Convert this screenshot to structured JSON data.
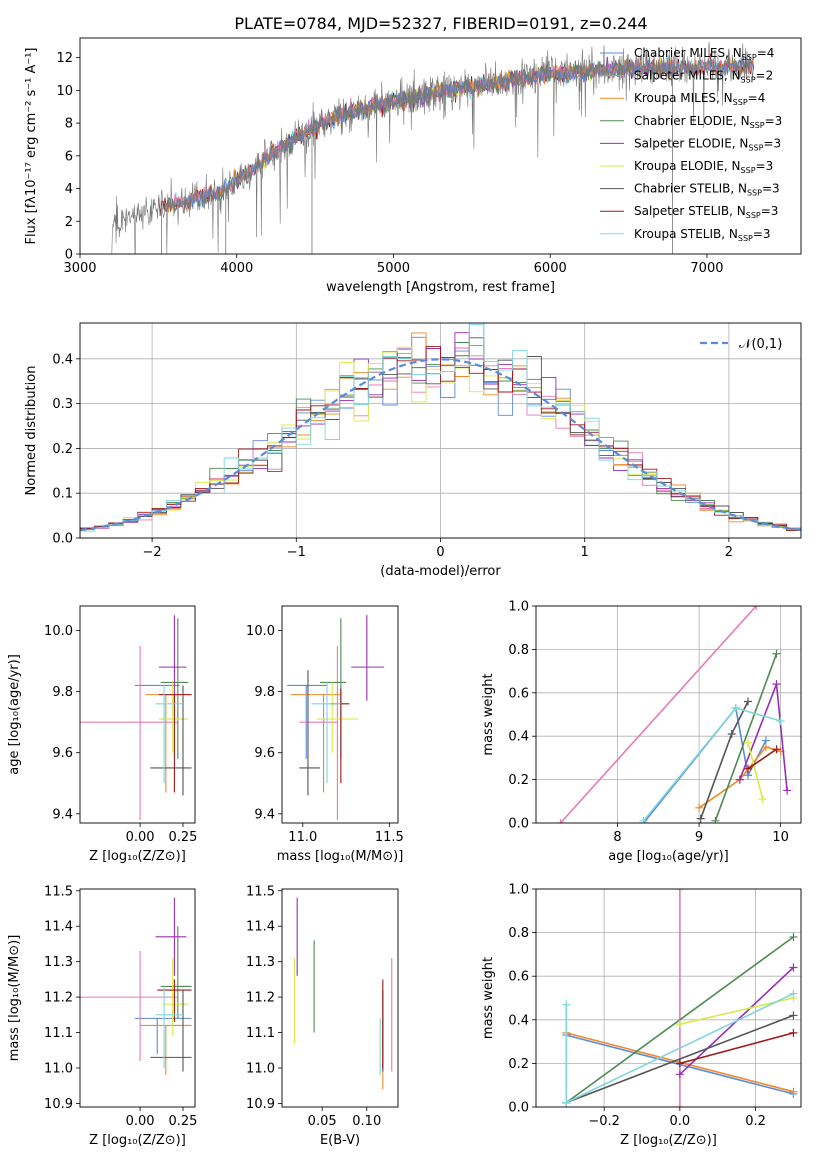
{
  "title": "PLATE=0784, MJD=52327, FIBERID=0191, z=0.244",
  "colors": {
    "chabrier_miles": "#5b8ad8",
    "salpeter_miles": "#e87ab5",
    "kroupa_miles": "#f0892a",
    "chabrier_elodie": "#4e8a52",
    "salpeter_elodie": "#9a2db5",
    "kroupa_elodie": "#d8ea48",
    "chabrier_stelib": "#555555",
    "salpeter_stelib": "#a01818",
    "kroupa_stelib": "#7fd6dc"
  },
  "legend_spectrum": [
    {
      "label": "Chabrier MILES, N",
      "sub": "SSP",
      "tail": "=4",
      "color": "#5b8ad8"
    },
    {
      "label": "Salpeter MILES, N",
      "sub": "SSP",
      "tail": "=2",
      "color": "#e87ab5"
    },
    {
      "label": "Kroupa MILES, N",
      "sub": "SSP",
      "tail": "=4",
      "color": "#f0892a"
    },
    {
      "label": "Chabrier ELODIE, N",
      "sub": "SSP",
      "tail": "=3",
      "color": "#4e8a52"
    },
    {
      "label": "Salpeter ELODIE, N",
      "sub": "SSP",
      "tail": "=3",
      "color": "#9a2db5"
    },
    {
      "label": "Kroupa ELODIE, N",
      "sub": "SSP",
      "tail": "=3",
      "color": "#d8ea48"
    },
    {
      "label": "Chabrier STELIB, N",
      "sub": "SSP",
      "tail": "=3",
      "color": "#555555"
    },
    {
      "label": "Salpeter STELIB, N",
      "sub": "SSP",
      "tail": "=3",
      "color": "#a01818"
    },
    {
      "label": "Kroupa STELIB, N",
      "sub": "SSP",
      "tail": "=3",
      "color": "#7fd6dc"
    }
  ],
  "chart_data": [
    {
      "id": "spectrum",
      "type": "line",
      "xlabel": "wavelength [Angstrom, rest frame]",
      "ylabel": "Flux [fλ10⁻¹⁷ erg cm⁻² s⁻¹ A⁻¹]",
      "xlim": [
        3000,
        7600
      ],
      "ylim": [
        0,
        13.2
      ],
      "xticks": [
        3000,
        4000,
        5000,
        6000,
        7000
      ],
      "yticks": [
        0,
        2,
        4,
        6,
        8,
        10,
        12
      ],
      "continuum": [
        [
          3200,
          1.9
        ],
        [
          3500,
          2.8
        ],
        [
          3700,
          3.3
        ],
        [
          3900,
          3.8
        ],
        [
          4100,
          5.2
        ],
        [
          4300,
          6.6
        ],
        [
          4500,
          7.8
        ],
        [
          4700,
          8.6
        ],
        [
          5000,
          9.3
        ],
        [
          5300,
          9.9
        ],
        [
          5600,
          10.4
        ],
        [
          6000,
          11.0
        ],
        [
          6400,
          11.3
        ],
        [
          6800,
          11.4
        ],
        [
          7200,
          11.5
        ],
        [
          7300,
          11.5
        ]
      ],
      "grid": false
    },
    {
      "id": "residual_hist",
      "type": "area",
      "xlabel": "(data-model)/error",
      "ylabel": "Normed distribution",
      "xlim": [
        -2.5,
        2.5
      ],
      "ylim": [
        0,
        0.48
      ],
      "xticks": [
        -2,
        -1,
        0,
        1,
        2
      ],
      "yticks": [
        0.0,
        0.1,
        0.2,
        0.3,
        0.4
      ],
      "legend": "𝒩(0,1)",
      "bin_edges": [
        -2.5,
        -2.4,
        -2.3,
        -2.2,
        -2.1,
        -2.0,
        -1.9,
        -1.8,
        -1.7,
        -1.6,
        -1.5,
        -1.4,
        -1.3,
        -1.2,
        -1.1,
        -1.0,
        -0.9,
        -0.8,
        -0.7,
        -0.6,
        -0.5,
        -0.4,
        -0.3,
        -0.2,
        -0.1,
        0.0,
        0.1,
        0.2,
        0.3,
        0.4,
        0.5,
        0.6,
        0.7,
        0.8,
        0.9,
        1.0,
        1.1,
        1.2,
        1.3,
        1.4,
        1.5,
        1.6,
        1.7,
        1.8,
        1.9,
        2.0,
        2.1,
        2.2,
        2.3,
        2.4,
        2.5
      ],
      "grid": true
    },
    {
      "id": "age_vs_z",
      "type": "scatter",
      "xlabel": "Z [log₁₀(Z/Z⊙)]",
      "ylabel": "age  [log₁₀(age/yr)]",
      "xlim": [
        -0.35,
        0.32
      ],
      "ylim": [
        9.37,
        10.08
      ],
      "xticks": [
        0.0,
        0.25
      ],
      "xtick_labels": [
        "0.00",
        "0.25"
      ],
      "yticks": [
        9.4,
        9.6,
        9.8,
        10.0
      ],
      "points": [
        {
          "c": "chabrier_miles",
          "x": 0.1,
          "y": 9.82,
          "xe": [
            -0.03,
            0.23
          ],
          "ye": [
            9.82,
            9.82
          ]
        },
        {
          "c": "salpeter_miles",
          "x": 0.0,
          "y": 9.7,
          "xe": [
            -0.35,
            0.22
          ],
          "ye": [
            9.38,
            9.95
          ]
        },
        {
          "c": "kroupa_miles",
          "x": 0.15,
          "y": 9.79,
          "xe": [
            0.03,
            0.3
          ],
          "ye": [
            9.47,
            9.79
          ]
        },
        {
          "c": "chabrier_elodie",
          "x": 0.22,
          "y": 9.83,
          "xe": [
            0.12,
            0.28
          ],
          "ye": [
            9.58,
            10.04
          ]
        },
        {
          "c": "salpeter_elodie",
          "x": 0.2,
          "y": 9.88,
          "xe": [
            0.11,
            0.27
          ],
          "ye": [
            9.75,
            10.05
          ]
        },
        {
          "c": "kroupa_elodie",
          "x": 0.19,
          "y": 9.71,
          "xe": [
            0.11,
            0.28
          ],
          "ye": [
            9.6,
            9.83
          ]
        },
        {
          "c": "chabrier_stelib",
          "x": 0.25,
          "y": 9.55,
          "xe": [
            0.06,
            0.3
          ],
          "ye": [
            9.46,
            9.82
          ]
        },
        {
          "c": "salpeter_stelib",
          "x": 0.2,
          "y": 9.79,
          "xe": [
            0.11,
            0.3
          ],
          "ye": [
            9.47,
            9.79
          ]
        },
        {
          "c": "kroupa_stelib",
          "x": 0.14,
          "y": 9.76,
          "xe": [
            0.09,
            0.25
          ],
          "ye": [
            9.5,
            9.82
          ]
        }
      ]
    },
    {
      "id": "age_vs_mass",
      "type": "scatter",
      "xlabel": "mass [log₁₀(M/M⊙)]",
      "ylabel": "",
      "xlim": [
        10.88,
        11.55
      ],
      "ylim": [
        9.37,
        10.08
      ],
      "xticks": [
        11.0,
        11.5
      ],
      "xtick_labels": [
        "11.0",
        "11.5"
      ],
      "yticks": [
        9.4,
        9.6,
        9.8,
        10.0
      ],
      "points": [
        {
          "c": "chabrier_miles",
          "x": 11.02,
          "y": 9.82,
          "xe": [
            10.91,
            11.14
          ],
          "ye": [
            9.58,
            9.82
          ]
        },
        {
          "c": "salpeter_miles",
          "x": 11.2,
          "y": 9.7,
          "xe": [
            10.98,
            11.2
          ],
          "ye": [
            9.38,
            9.95
          ]
        },
        {
          "c": "kroupa_miles",
          "x": 11.12,
          "y": 9.79,
          "xe": [
            10.93,
            11.22
          ],
          "ye": [
            9.47,
            9.79
          ]
        },
        {
          "c": "chabrier_elodie",
          "x": 11.22,
          "y": 9.83,
          "xe": [
            11.1,
            11.25
          ],
          "ye": [
            9.58,
            10.04
          ]
        },
        {
          "c": "salpeter_elodie",
          "x": 11.37,
          "y": 9.88,
          "xe": [
            11.28,
            11.47
          ],
          "ye": [
            9.77,
            10.05
          ]
        },
        {
          "c": "kroupa_elodie",
          "x": 11.17,
          "y": 9.71,
          "xe": [
            11.08,
            11.32
          ],
          "ye": [
            9.6,
            9.83
          ]
        },
        {
          "c": "chabrier_stelib",
          "x": 11.03,
          "y": 9.55,
          "xe": [
            10.98,
            11.1
          ],
          "ye": [
            9.46,
            9.87
          ]
        },
        {
          "c": "salpeter_stelib",
          "x": 11.22,
          "y": 9.76,
          "xe": [
            11.16,
            11.27
          ],
          "ye": [
            9.5,
            9.81
          ]
        },
        {
          "c": "kroupa_stelib",
          "x": 11.14,
          "y": 9.76,
          "xe": [
            11.05,
            11.22
          ],
          "ye": [
            9.5,
            9.83
          ]
        }
      ]
    },
    {
      "id": "mass_weight_vs_age",
      "type": "line",
      "xlabel": "age  [log₁₀(age/yr)]",
      "ylabel": "mass weight",
      "xlim": [
        7.0,
        10.25
      ],
      "ylim": [
        0.0,
        1.0
      ],
      "xticks": [
        8,
        9,
        10
      ],
      "yticks": [
        0.0,
        0.2,
        0.4,
        0.6,
        0.8,
        1.0
      ],
      "series": [
        {
          "c": "chabrier_miles",
          "pts": [
            [
              8.32,
              0.0
            ],
            [
              9.45,
              0.53
            ],
            [
              9.6,
              0.22
            ],
            [
              9.82,
              0.38
            ]
          ]
        },
        {
          "c": "salpeter_miles",
          "pts": [
            [
              7.3,
              0.0
            ],
            [
              9.7,
              1.0
            ]
          ]
        },
        {
          "c": "kroupa_miles",
          "pts": [
            [
              9.0,
              0.07
            ],
            [
              9.5,
              0.2
            ],
            [
              9.82,
              0.35
            ],
            [
              10.0,
              0.33
            ]
          ]
        },
        {
          "c": "chabrier_elodie",
          "pts": [
            [
              9.2,
              0.01
            ],
            [
              9.95,
              0.78
            ]
          ]
        },
        {
          "c": "salpeter_elodie",
          "pts": [
            [
              9.5,
              0.2
            ],
            [
              9.95,
              0.64
            ],
            [
              10.08,
              0.15
            ]
          ]
        },
        {
          "c": "kroupa_elodie",
          "pts": [
            [
              9.6,
              0.37
            ],
            [
              9.78,
              0.11
            ]
          ]
        },
        {
          "c": "chabrier_stelib",
          "pts": [
            [
              9.02,
              0.02
            ],
            [
              9.4,
              0.41
            ],
            [
              9.6,
              0.56
            ]
          ]
        },
        {
          "c": "salpeter_stelib",
          "pts": [
            [
              9.6,
              0.25
            ],
            [
              9.95,
              0.34
            ]
          ]
        },
        {
          "c": "kroupa_stelib",
          "pts": [
            [
              8.32,
              0.01
            ],
            [
              9.45,
              0.53
            ],
            [
              10.0,
              0.47
            ]
          ]
        }
      ],
      "grid": true
    },
    {
      "id": "mass_vs_z",
      "type": "scatter",
      "xlabel": "Z [log₁₀(Z/Z⊙)]",
      "ylabel": "mass [log₁₀(M/M⊙)]",
      "xlim": [
        -0.35,
        0.32
      ],
      "ylim": [
        10.89,
        11.505
      ],
      "xticks": [
        0.0,
        0.25
      ],
      "xtick_labels": [
        "0.00",
        "0.25"
      ],
      "yticks": [
        10.9,
        11.0,
        11.1,
        11.2,
        11.3,
        11.4,
        11.5
      ],
      "points": [
        {
          "c": "chabrier_miles",
          "x": 0.1,
          "y": 11.14,
          "xe": [
            -0.03,
            0.3
          ],
          "ye": [
            11.04,
            11.14
          ]
        },
        {
          "c": "salpeter_miles",
          "x": 0.0,
          "y": 11.2,
          "xe": [
            -0.35,
            0.22
          ],
          "ye": [
            11.02,
            11.33
          ]
        },
        {
          "c": "kroupa_miles",
          "x": 0.15,
          "y": 11.12,
          "xe": [
            0.0,
            0.3
          ],
          "ye": [
            10.98,
            11.12
          ]
        },
        {
          "c": "chabrier_elodie",
          "x": 0.22,
          "y": 11.23,
          "xe": [
            0.12,
            0.3
          ],
          "ye": [
            11.14,
            11.4
          ]
        },
        {
          "c": "salpeter_elodie",
          "x": 0.2,
          "y": 11.37,
          "xe": [
            0.09,
            0.27
          ],
          "ye": [
            11.26,
            11.48
          ]
        },
        {
          "c": "kroupa_elodie",
          "x": 0.19,
          "y": 11.18,
          "xe": [
            0.13,
            0.28
          ],
          "ye": [
            11.09,
            11.31
          ]
        },
        {
          "c": "chabrier_stelib",
          "x": 0.25,
          "y": 11.03,
          "xe": [
            0.06,
            0.3
          ],
          "ye": [
            10.99,
            11.22
          ]
        },
        {
          "c": "salpeter_stelib",
          "x": 0.2,
          "y": 11.22,
          "xe": [
            0.1,
            0.3
          ],
          "ye": [
            11.13,
            11.25
          ]
        },
        {
          "c": "kroupa_stelib",
          "x": 0.14,
          "y": 11.15,
          "xe": [
            0.09,
            0.25
          ],
          "ye": [
            11.0,
            11.23
          ]
        }
      ]
    },
    {
      "id": "mass_vs_ebv",
      "type": "scatter",
      "xlabel": "E(B-V)",
      "ylabel": "",
      "xlim": [
        0.005,
        0.135
      ],
      "ylim": [
        10.89,
        11.505
      ],
      "xticks": [
        0.05,
        0.1
      ],
      "xtick_labels": [
        "0.05",
        "0.10"
      ],
      "yticks": [
        10.9,
        11.0,
        11.1,
        11.2,
        11.3,
        11.4,
        11.5
      ],
      "points": [
        {
          "c": "chabrier_miles",
          "x": 0.118,
          "y": 11.14,
          "xe": [
            0.118,
            0.118
          ],
          "ye": [
            11.04,
            11.14
          ]
        },
        {
          "c": "salpeter_miles",
          "x": 0.128,
          "y": 11.2,
          "xe": [
            0.128,
            0.128
          ],
          "ye": [
            10.99,
            11.31
          ]
        },
        {
          "c": "kroupa_miles",
          "x": 0.118,
          "y": 11.12,
          "xe": [
            0.118,
            0.118
          ],
          "ye": [
            10.94,
            11.12
          ]
        },
        {
          "c": "chabrier_elodie",
          "x": 0.041,
          "y": 11.23,
          "xe": [
            0.041,
            0.041
          ],
          "ye": [
            11.1,
            11.36
          ]
        },
        {
          "c": "salpeter_elodie",
          "x": 0.022,
          "y": 11.37,
          "xe": [
            0.022,
            0.022
          ],
          "ye": [
            11.26,
            11.48
          ]
        },
        {
          "c": "kroupa_elodie",
          "x": 0.019,
          "y": 11.18,
          "xe": [
            0.019,
            0.019
          ],
          "ye": [
            11.07,
            11.31
          ]
        },
        {
          "c": "chabrier_stelib",
          "x": 0.118,
          "y": 11.03,
          "xe": [
            0.118,
            0.118
          ],
          "ye": [
            10.99,
            11.22
          ]
        },
        {
          "c": "salpeter_stelib",
          "x": 0.118,
          "y": 11.22,
          "xe": [
            0.118,
            0.118
          ],
          "ye": [
            11.0,
            11.25
          ]
        },
        {
          "c": "kroupa_stelib",
          "x": 0.115,
          "y": 11.14,
          "xe": [
            0.115,
            0.115
          ],
          "ye": [
            10.98,
            11.14
          ]
        }
      ]
    },
    {
      "id": "mass_weight_vs_z",
      "type": "line",
      "xlabel": "Z [log₁₀(Z/Z⊙)]",
      "ylabel": "mass weight",
      "xlim": [
        -0.38,
        0.32
      ],
      "ylim": [
        0.0,
        1.0
      ],
      "xticks": [
        -0.2,
        0.0,
        0.2
      ],
      "xtick_labels": [
        "−0.2",
        "0.0",
        "0.2"
      ],
      "yticks": [
        0.0,
        0.2,
        0.4,
        0.6,
        0.8,
        1.0
      ],
      "series": [
        {
          "c": "chabrier_miles",
          "pts": [
            [
              -0.3,
              0.33
            ],
            [
              0.3,
              0.06
            ]
          ]
        },
        {
          "c": "salpeter_miles",
          "pts": [
            [
              0.0,
              0.0
            ],
            [
              0.0,
              1.0
            ]
          ]
        },
        {
          "c": "kroupa_miles",
          "pts": [
            [
              -0.3,
              0.34
            ],
            [
              0.3,
              0.07
            ]
          ]
        },
        {
          "c": "chabrier_elodie",
          "pts": [
            [
              -0.3,
              0.02
            ],
            [
              0.3,
              0.78
            ]
          ]
        },
        {
          "c": "salpeter_elodie",
          "pts": [
            [
              0.0,
              0.15
            ],
            [
              0.3,
              0.64
            ]
          ]
        },
        {
          "c": "kroupa_elodie",
          "pts": [
            [
              0.0,
              0.38
            ],
            [
              0.3,
              0.5
            ]
          ]
        },
        {
          "c": "chabrier_stelib",
          "pts": [
            [
              -0.3,
              0.02
            ],
            [
              0.3,
              0.42
            ]
          ]
        },
        {
          "c": "salpeter_stelib",
          "pts": [
            [
              0.0,
              0.2
            ],
            [
              0.3,
              0.34
            ]
          ]
        },
        {
          "c": "kroupa_stelib",
          "pts": [
            [
              -0.3,
              0.47
            ],
            [
              -0.3,
              0.02
            ],
            [
              0.3,
              0.52
            ]
          ]
        }
      ],
      "grid": true
    }
  ]
}
